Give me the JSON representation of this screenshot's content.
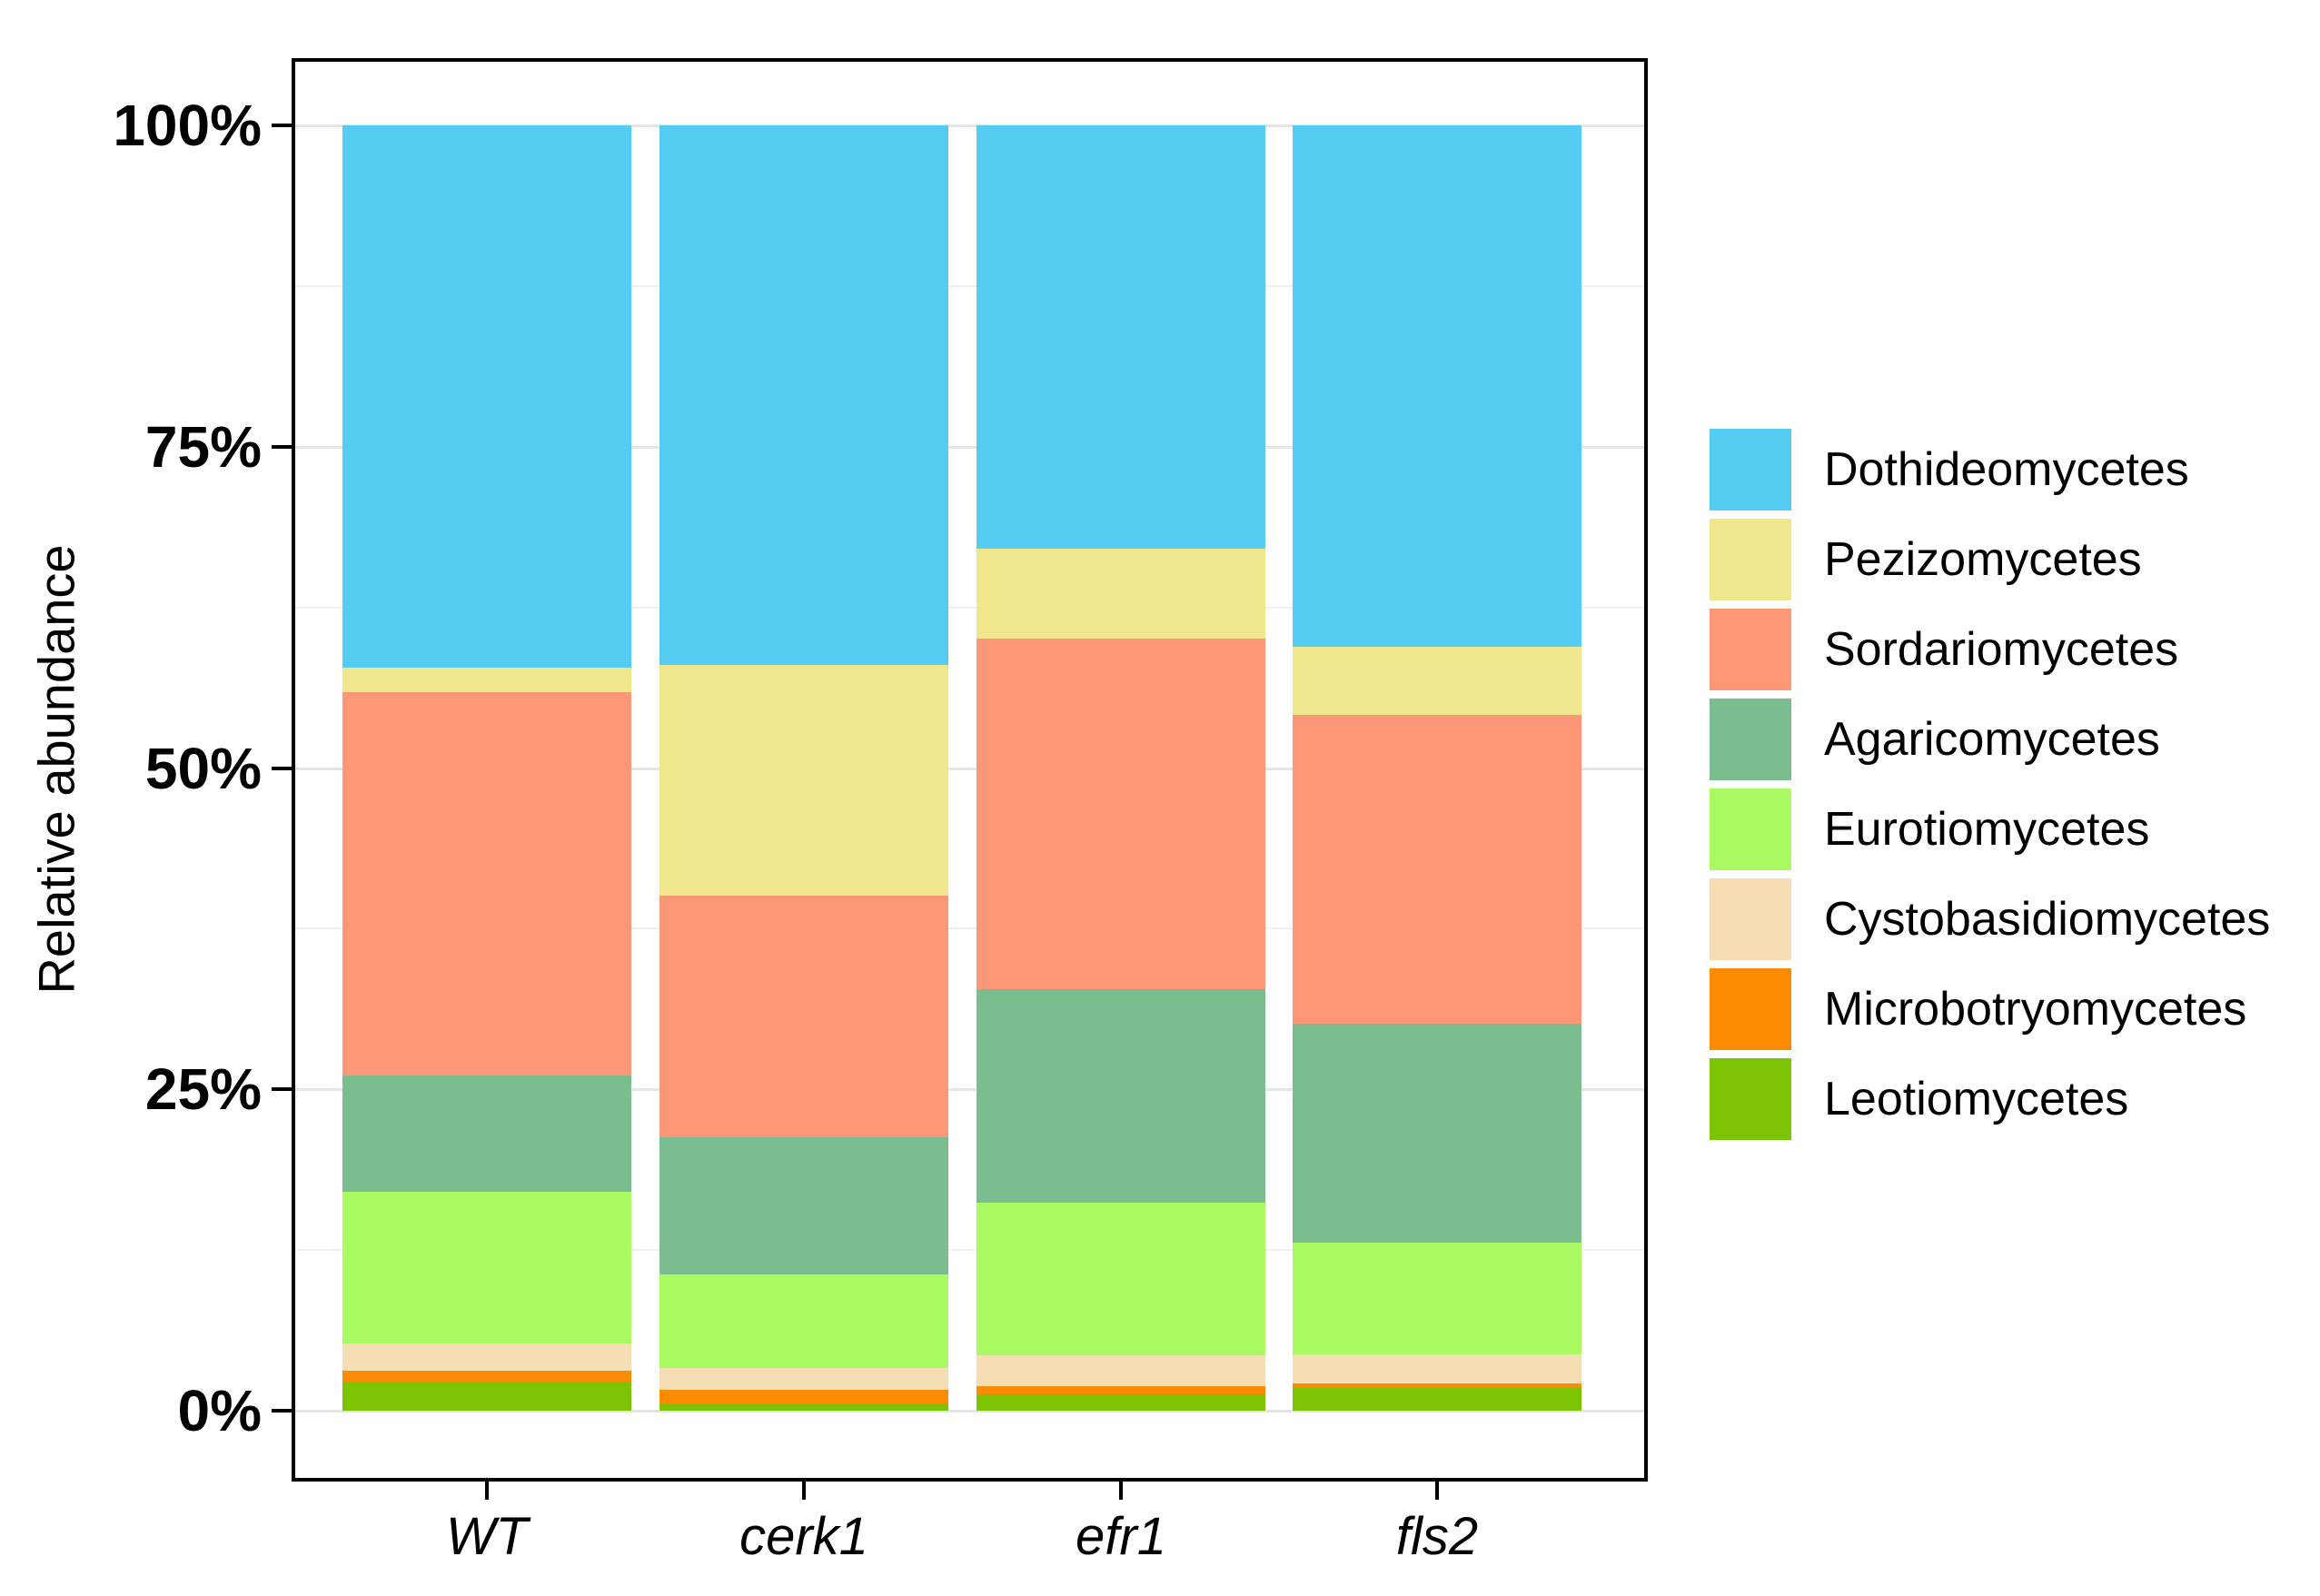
{
  "figure": {
    "background": "#ffffff",
    "y_axis": {
      "title": "Relative abundance",
      "tick_labels": [
        "100%",
        "75%",
        "50%",
        "25%",
        "0%"
      ],
      "tick_values": [
        100,
        75,
        50,
        25,
        0
      ]
    },
    "x_axis": {
      "tick_labels": [
        "WT",
        "cerk1",
        "efr1",
        "fls2"
      ]
    },
    "legend": {
      "position": "right",
      "items": [
        {
          "label": "Dothideomycetes",
          "color": "#55CCF2"
        },
        {
          "label": "Pezizomycetes",
          "color": "#F0E68C"
        },
        {
          "label": "Sordariomycetes",
          "color": "#FB9677"
        },
        {
          "label": "Agaricomycetes",
          "color": "#7ABD8F"
        },
        {
          "label": "Eurotiomycetes",
          "color": "#AAFA61"
        },
        {
          "label": "Cystobasidiomycetes",
          "color": "#F5DEB3"
        },
        {
          "label": "Microbotryomycetes",
          "color": "#FB8C04"
        },
        {
          "label": "Leotiomycetes",
          "color": "#7DC405"
        }
      ]
    },
    "colors": {
      "panel_border": "#000000",
      "grid_major": "#e5e5e5",
      "grid_minor": "#f0f0f0",
      "axis_text": "#000000"
    }
  },
  "chart_data": {
    "type": "bar",
    "stacked": true,
    "title": "",
    "xlabel": "",
    "ylabel": "Relative abundance",
    "y_unit": "%",
    "ylim": [
      0,
      100
    ],
    "grid": {
      "major": [
        0,
        25,
        50,
        75,
        100
      ],
      "minor": [
        12.5,
        37.5,
        62.5,
        87.5
      ]
    },
    "legend_position": "right",
    "categories": [
      "WT",
      "cerk1",
      "efr1",
      "fls2"
    ],
    "series": [
      {
        "name": "Leotiomycetes",
        "color": "#7DC405",
        "values": [
          2.2,
          0.6,
          1.3,
          1.8
        ]
      },
      {
        "name": "Microbotryomycetes",
        "color": "#FB8C04",
        "values": [
          0.9,
          1.0,
          0.6,
          0.3
        ]
      },
      {
        "name": "Cystobasidiomycetes",
        "color": "#F5DEB3",
        "values": [
          2.1,
          1.7,
          2.4,
          2.3
        ]
      },
      {
        "name": "Eurotiomycetes",
        "color": "#AAFA61",
        "values": [
          11.8,
          7.3,
          11.9,
          8.7
        ]
      },
      {
        "name": "Agaricomycetes",
        "color": "#7ABD8F",
        "values": [
          9.1,
          10.7,
          16.6,
          17.0
        ]
      },
      {
        "name": "Sordariomycetes",
        "color": "#FB9677",
        "values": [
          29.8,
          18.8,
          27.3,
          24.0
        ]
      },
      {
        "name": "Pezizomycetes",
        "color": "#F0E68C",
        "values": [
          1.9,
          17.9,
          7.0,
          5.3
        ]
      },
      {
        "name": "Dothideomycetes",
        "color": "#55CCF2",
        "values": [
          42.2,
          42.0,
          32.9,
          40.6
        ]
      }
    ]
  }
}
